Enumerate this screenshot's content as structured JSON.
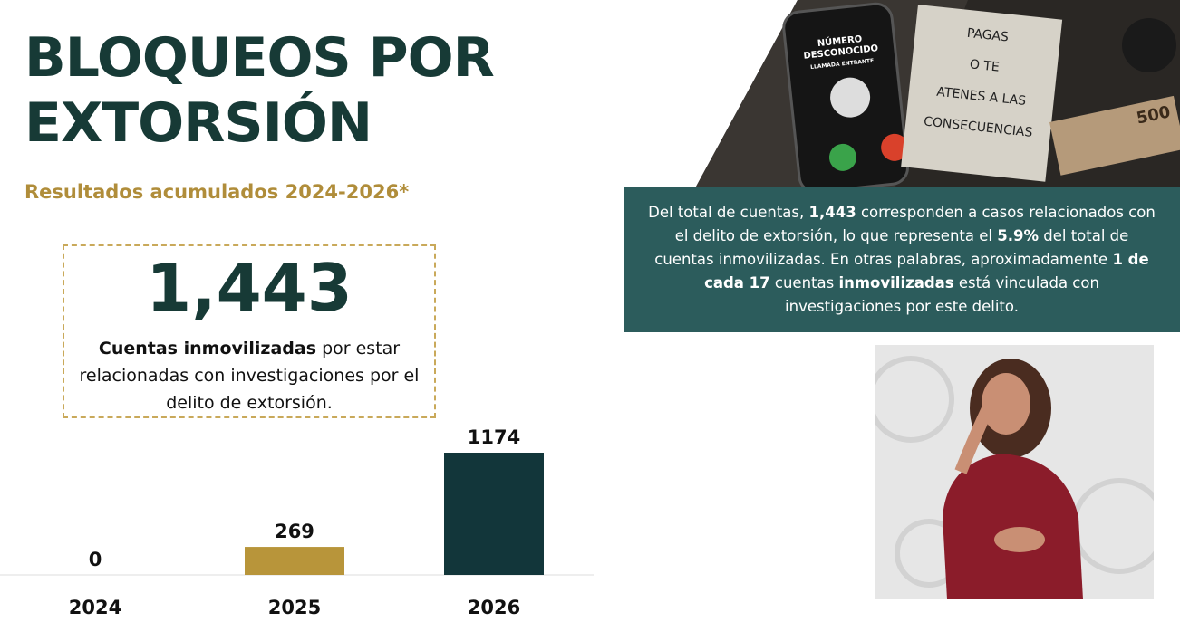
{
  "title": "BLOQUEOS POR EXTORSIÓN",
  "subtitle": "Resultados acumulados 2024-2026*",
  "highlight": {
    "number": "1,443",
    "bold": "Cuentas inmovilizadas",
    "text": " por estar relacionadas con investigaciones por el delito de extorsión."
  },
  "info": {
    "parts": [
      "Del total de cuentas, ",
      "1,443",
      " corresponden a casos relacionados con el delito de extorsión, lo que representa el ",
      "5.9%",
      " del total de cuentas inmovilizadas. En otras palabras, aproximadamente ",
      "1 de cada 17",
      " cuentas ",
      "inmovilizadas",
      " está vinculada con investigaciones por este delito."
    ]
  },
  "photo": {
    "phone_lines": [
      "NÚMERO",
      "DESCONOCIDO",
      "LLAMADA ENTRANTE"
    ],
    "note_lines": [
      "PAGAS",
      "O TE",
      "ATENES A LAS",
      "CONSECUENCIAS"
    ],
    "banknote": "500"
  },
  "chart_data": {
    "type": "bar",
    "categories": [
      "2024",
      "2025",
      "2026"
    ],
    "values": [
      0,
      269,
      1174
    ],
    "colors": [
      "#b8953a",
      "#b8953a",
      "#12363a"
    ]
  }
}
